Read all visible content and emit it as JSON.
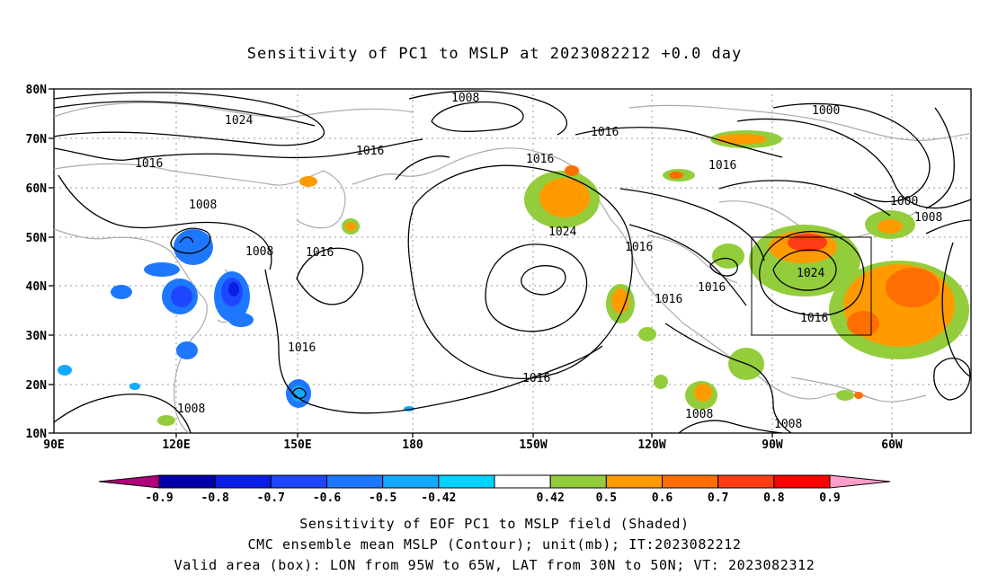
{
  "title": "Sensitivity of PC1 to MSLP at 2023082212 +0.0 day",
  "axes": {
    "lat_labels": [
      "80N",
      "70N",
      "60N",
      "50N",
      "40N",
      "30N",
      "20N",
      "10N"
    ],
    "lon_labels": [
      "90E",
      "120E",
      "150E",
      "180",
      "150W",
      "120W",
      "90W",
      "60W"
    ]
  },
  "colorbar": {
    "labels": [
      "-0.9",
      "-0.8",
      "-0.7",
      "-0.6",
      "-0.5",
      "-0.42",
      "0.42",
      "0.5",
      "0.6",
      "0.7",
      "0.8",
      "0.9"
    ],
    "colors": [
      "#b0007a",
      "#0000a8",
      "#0a1ee6",
      "#1e46ff",
      "#1e78ff",
      "#14aaff",
      "#00d2ff",
      "#ffffff",
      "#94cd3c",
      "#ff9a00",
      "#ff6e00",
      "#ff3c14",
      "#ff0000",
      "#ff9ec8"
    ]
  },
  "contour_labels": [
    "1008",
    "1024",
    "1016",
    "1016",
    "1008",
    "1008",
    "1016",
    "1016",
    "1008",
    "1016",
    "1016",
    "1024",
    "1016",
    "1016",
    "1016",
    "1016",
    "1016",
    "1000",
    "1000",
    "1008",
    "1024",
    "1016",
    "1008",
    "1008"
  ],
  "box": {
    "label": "Valid area",
    "lon_from": "95W",
    "lon_to": "65W",
    "lat_from": "30N",
    "lat_to": "50N"
  },
  "captions": {
    "line1": "Sensitivity of EOF PC1 to MSLP field (Shaded)",
    "line2": "CMC ensemble mean MSLP (Contour); unit(mb); IT:2023082212",
    "line3": "Valid area (box): LON from 95W to 65W, LAT from 30N to 50N; VT: 2023082312"
  }
}
